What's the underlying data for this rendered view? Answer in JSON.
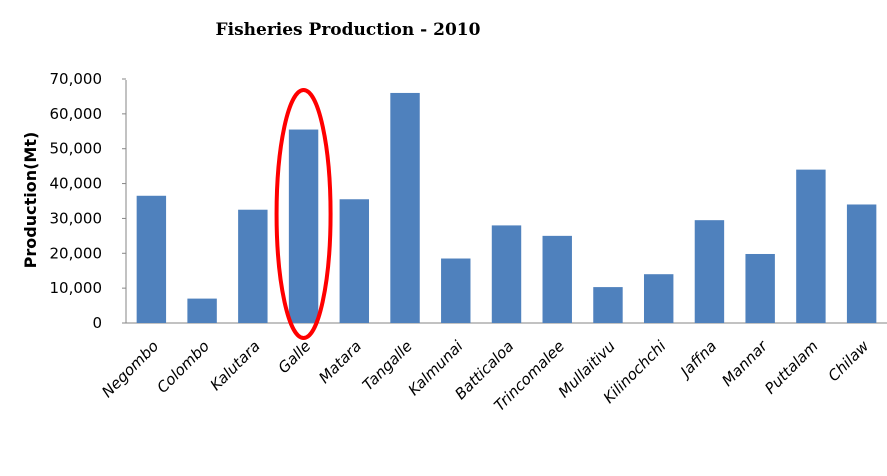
{
  "chart_data": {
    "type": "bar",
    "title": "Fisheries Production - 2010",
    "ylabel": "Production(Mt)",
    "xlabel": "",
    "ylim": [
      0,
      70000
    ],
    "yticks": [
      "0",
      "10,000",
      "20,000",
      "30,000",
      "40,000",
      "50,000",
      "60,000",
      "70,000"
    ],
    "categories": [
      "Negombo",
      "Colombo",
      "Kalutara",
      "Galle",
      "Matara",
      "Tangalle",
      "Kalmunai",
      "Batticaloa",
      "Trincomalee",
      "Mullaitivu",
      "Kilinochchi",
      "Jaffna",
      "Mannar",
      "Puttalam",
      "Chilaw"
    ],
    "values": [
      36500,
      7000,
      32500,
      55500,
      35500,
      66000,
      18500,
      28000,
      25000,
      10300,
      14000,
      29500,
      19800,
      44000,
      34000
    ],
    "bar_color": "#4F81BD",
    "grid": false,
    "highlight": {
      "category": "Galle",
      "shape": "ellipse",
      "color": "#FF0000"
    }
  }
}
